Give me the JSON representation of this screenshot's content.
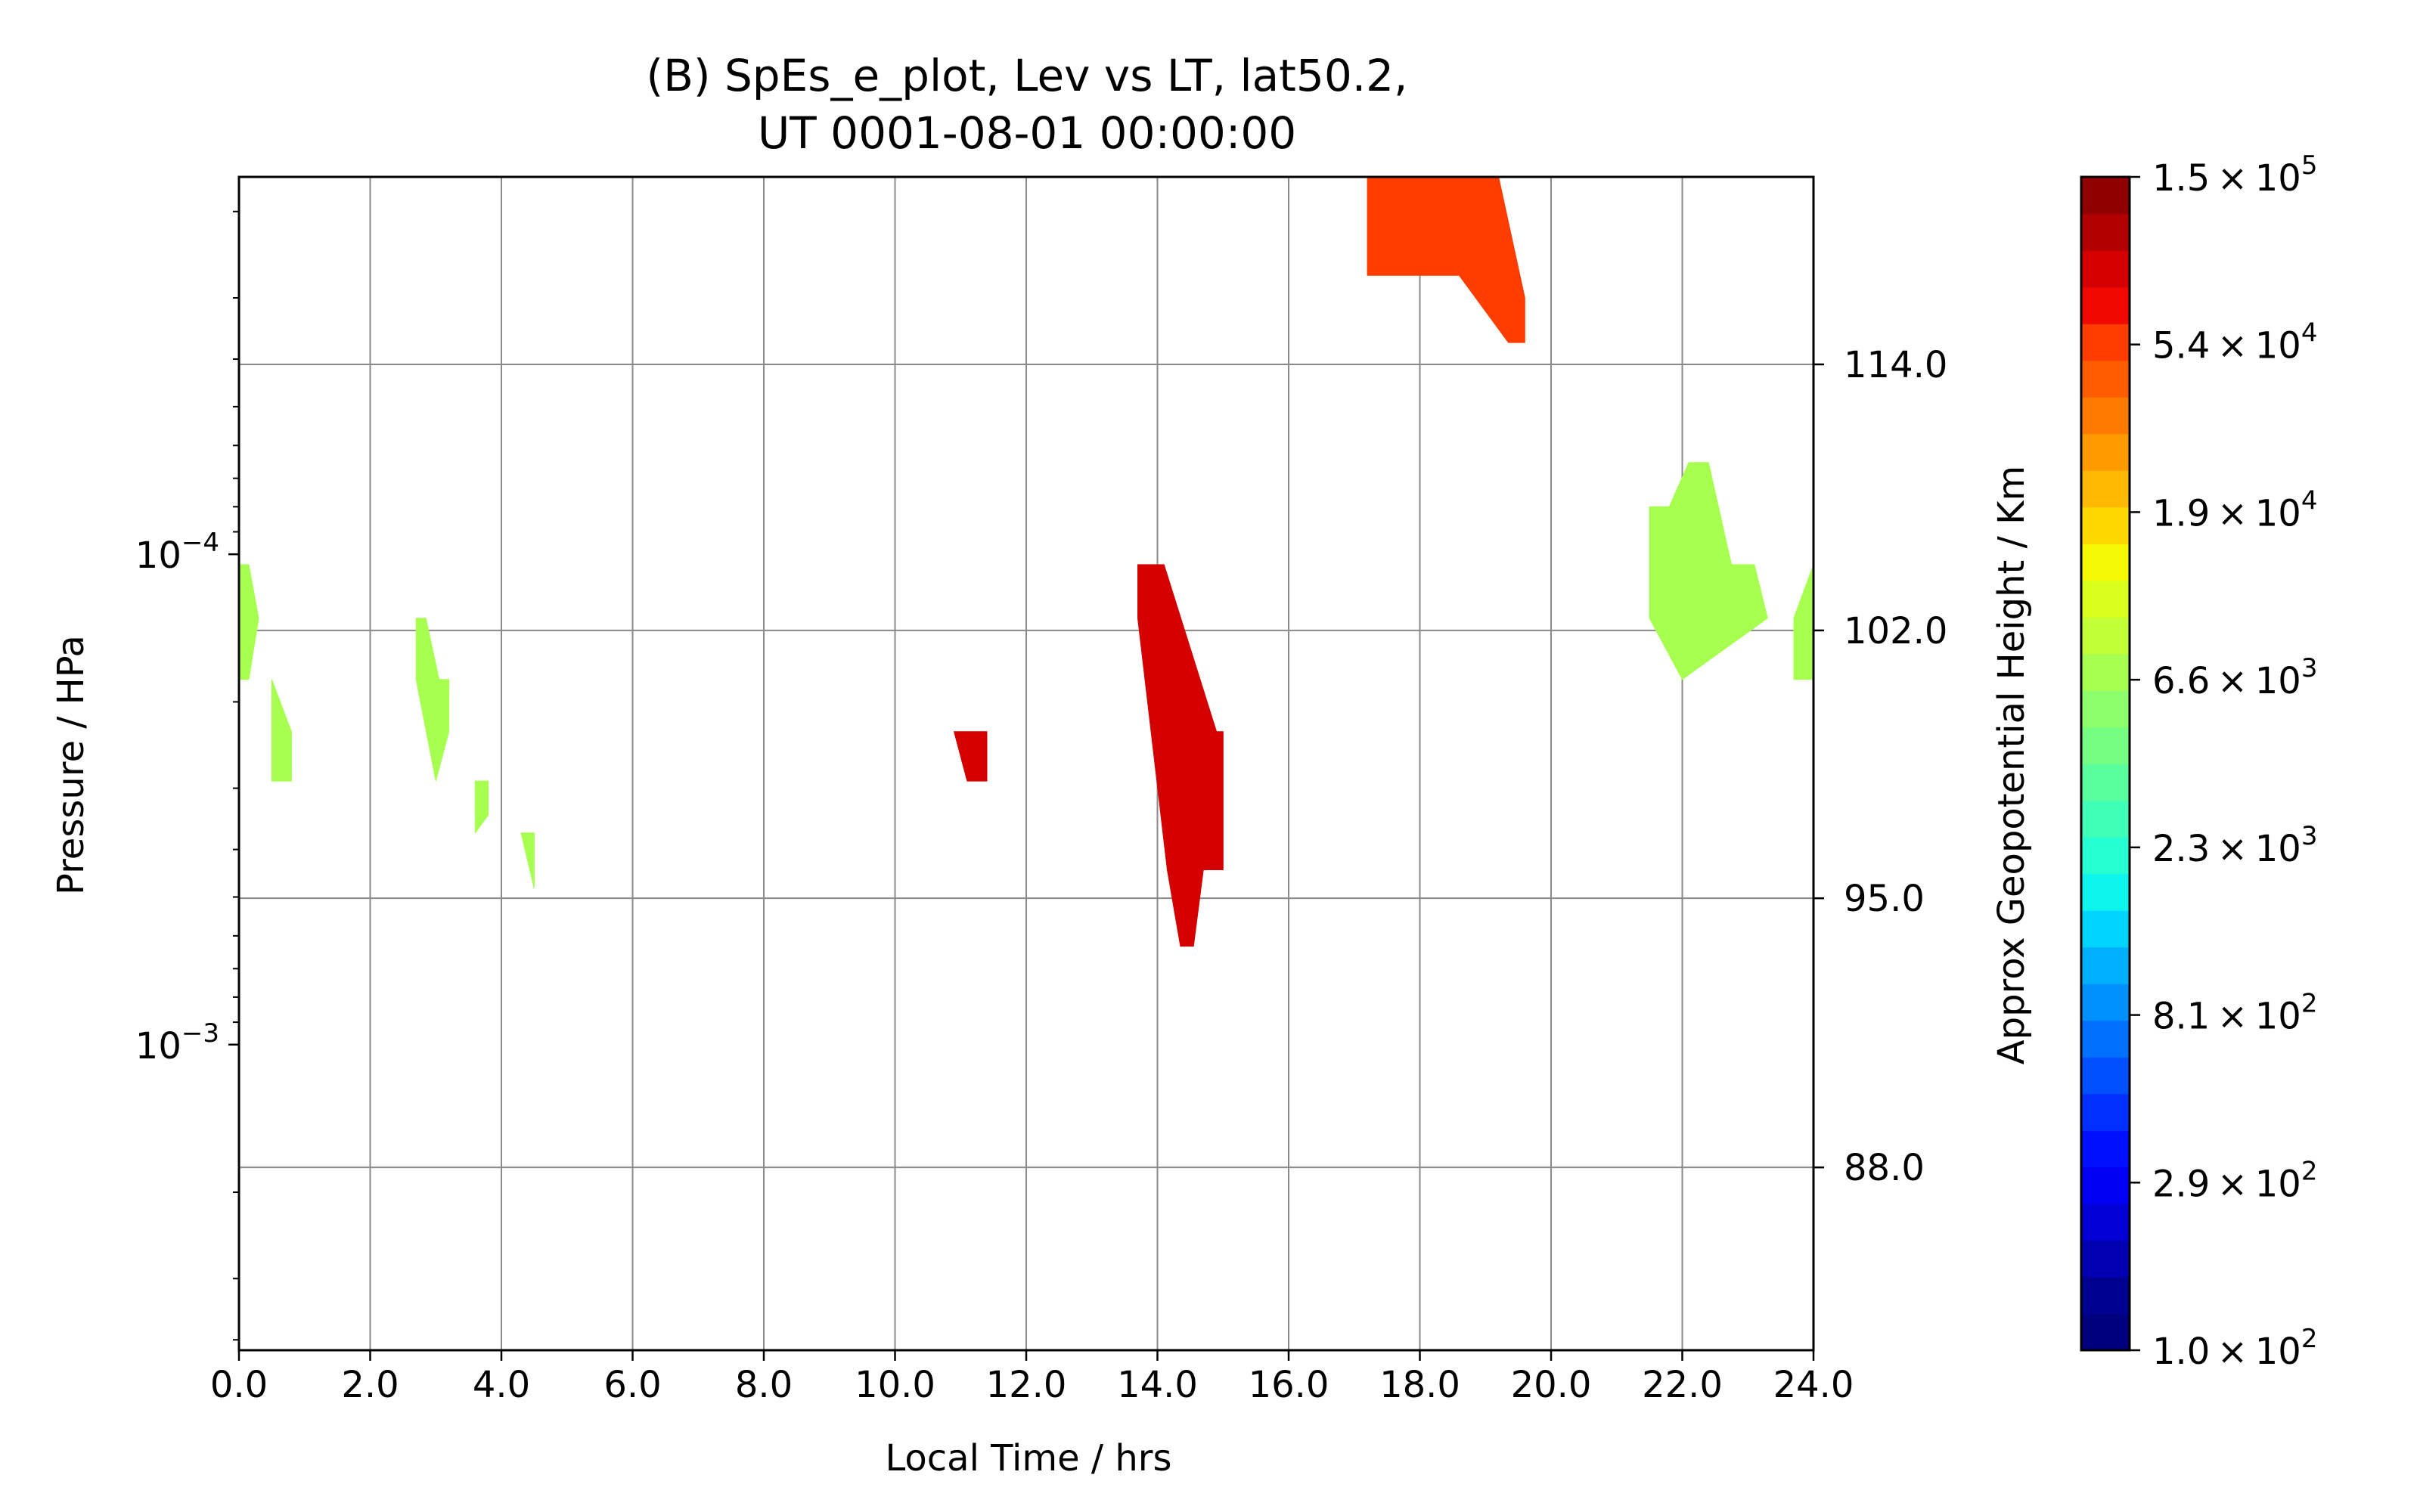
{
  "chart_data": {
    "type": "heatmap",
    "title_line1": "(B) SpEs_e_plot, Lev vs LT, lat50.2,",
    "title_line2": "UT 0001-08-01 00:00:00",
    "xlabel": "Local Time / hrs",
    "ylabel_left": "Pressure / HPa",
    "ylabel_right": "Approx Geopotential Height / Km",
    "x_ticks": [
      "0.0",
      "2.0",
      "4.0",
      "6.0",
      "8.0",
      "10.0",
      "12.0",
      "14.0",
      "16.0",
      "18.0",
      "20.0",
      "22.0",
      "24.0"
    ],
    "xlim": [
      0,
      24
    ],
    "y_scale": "log",
    "y_inverted": true,
    "y_ticks_left": [
      {
        "value": 0.0001,
        "base": "10",
        "exp": "−4"
      },
      {
        "value": 0.001,
        "base": "10",
        "exp": "−3"
      }
    ],
    "ylim_pressure": [
      0.0042,
      1.7e-05
    ],
    "y_ticks_right": [
      {
        "label": "114.0",
        "pressure": 4.1e-05
      },
      {
        "label": "102.0",
        "pressure": 0.000143
      },
      {
        "label": "95.0",
        "pressure": 0.000503
      },
      {
        "label": "88.0",
        "pressure": 0.00178
      }
    ],
    "grid": true,
    "colorbar": {
      "scale": "log",
      "min": 100,
      "max": 200000,
      "levels": 30,
      "tick_labels": [
        {
          "mantissa": "1.0",
          "exp": "2"
        },
        {
          "mantissa": "2.9",
          "exp": "2"
        },
        {
          "mantissa": "8.1",
          "exp": "2"
        },
        {
          "mantissa": "2.3",
          "exp": "3"
        },
        {
          "mantissa": "6.6",
          "exp": "3"
        },
        {
          "mantissa": "1.9",
          "exp": "4"
        },
        {
          "mantissa": "5.4",
          "exp": "4"
        },
        {
          "mantissa": "1.5",
          "exp": "5"
        }
      ],
      "colors": [
        "#00007f",
        "#000091",
        "#0000b2",
        "#0000d4",
        "#0000f5",
        "#0010ff",
        "#0030ff",
        "#0050ff",
        "#0070ff",
        "#0090ff",
        "#00b0ff",
        "#00d4ff",
        "#0cf4eb",
        "#26ffd1",
        "#40ffb7",
        "#5aff9d",
        "#74ff83",
        "#8dff6a",
        "#a7ff50",
        "#c1ff36",
        "#dbff1c",
        "#f4f802",
        "#ffd800",
        "#ffb900",
        "#ff9a00",
        "#ff7b00",
        "#ff5c00",
        "#ff3d00",
        "#f10800",
        "#d40000",
        "#b20000",
        "#910000"
      ]
    },
    "contour_regions": [
      {
        "color": "#a7ff50",
        "x": [
          0.0,
          0.15,
          0.3,
          0.15,
          0.0
        ],
        "p": [
          0.000105,
          0.000105,
          0.000135,
          0.00018,
          0.00018
        ]
      },
      {
        "color": "#a7ff50",
        "x": [
          0.5,
          0.8,
          0.8,
          0.5,
          0.5
        ],
        "p": [
          0.00018,
          0.00023,
          0.00029,
          0.00029,
          0.00018
        ]
      },
      {
        "color": "#a7ff50",
        "x": [
          2.7,
          2.85,
          3.05,
          3.2,
          3.2,
          3.0,
          2.7
        ],
        "p": [
          0.000135,
          0.000135,
          0.00018,
          0.00018,
          0.00023,
          0.00029,
          0.00018
        ]
      },
      {
        "color": "#a7ff50",
        "x": [
          3.6,
          3.8,
          3.8,
          3.6
        ],
        "p": [
          0.00029,
          0.00029,
          0.00034,
          0.00037
        ]
      },
      {
        "color": "#a7ff50",
        "x": [
          4.3,
          4.5,
          4.5
        ],
        "p": [
          0.00037,
          0.00037,
          0.00048
        ]
      },
      {
        "color": "#ff3d00",
        "x": [
          17.2,
          19.2,
          19.6,
          19.6,
          19.35,
          18.6,
          17.2
        ],
        "p": [
          1.7e-05,
          1.7e-05,
          3e-05,
          3.7e-05,
          3.7e-05,
          2.7e-05,
          2.7e-05
        ]
      },
      {
        "color": "#d40000",
        "x": [
          10.9,
          11.4,
          11.4,
          11.1,
          10.9
        ],
        "p": [
          0.00023,
          0.00023,
          0.00029,
          0.00029,
          0.00023
        ]
      },
      {
        "color": "#d40000",
        "x": [
          13.7,
          14.1,
          14.9,
          15.0,
          15.0,
          14.7,
          14.55,
          14.35,
          14.15,
          13.7
        ],
        "p": [
          0.000105,
          0.000105,
          0.00023,
          0.00023,
          0.00044,
          0.00044,
          0.00063,
          0.00063,
          0.00044,
          0.000135
        ]
      },
      {
        "color": "#a7ff50",
        "x": [
          21.5,
          21.8,
          22.1,
          22.4,
          22.75,
          23.1,
          23.3,
          22.0,
          21.5
        ],
        "p": [
          8e-05,
          8e-05,
          6.5e-05,
          6.5e-05,
          0.000105,
          0.000105,
          0.000135,
          0.00018,
          0.000135
        ]
      },
      {
        "color": "#a7ff50",
        "x": [
          23.7,
          24.0,
          24.0,
          23.7
        ],
        "p": [
          0.000135,
          0.000105,
          0.00018,
          0.00018
        ]
      }
    ]
  }
}
